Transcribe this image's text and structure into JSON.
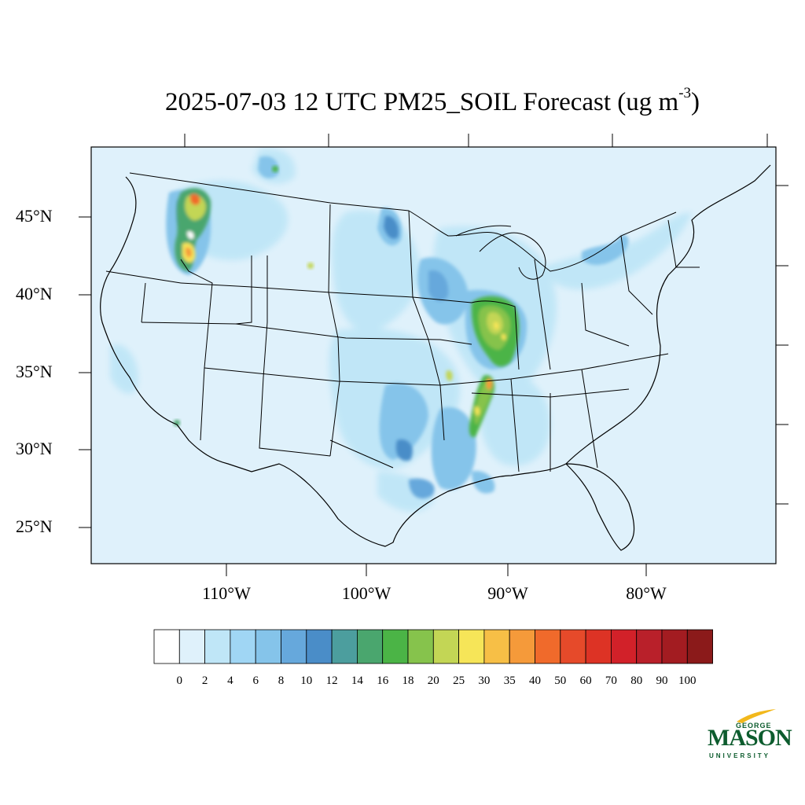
{
  "title_main": "2025-07-03 12 UTC PM25_SOIL Forecast (ug m",
  "title_sup": "-3",
  "title_close": ")",
  "latitude_labels": [
    "45°N",
    "40°N",
    "35°N",
    "30°N",
    "25°N"
  ],
  "longitude_labels": [
    "110°W",
    "100°W",
    "90°W",
    "80°W"
  ],
  "colorbar": {
    "levels": [
      "0",
      "2",
      "4",
      "6",
      "8",
      "10",
      "12",
      "14",
      "16",
      "18",
      "20",
      "25",
      "30",
      "35",
      "40",
      "50",
      "60",
      "70",
      "80",
      "90",
      "100"
    ],
    "colors": [
      "#ffffff",
      "#dff1fb",
      "#bfe6f7",
      "#a0d6f4",
      "#85c4ea",
      "#66a8dc",
      "#4a8dc8",
      "#4c9e9e",
      "#4aa66e",
      "#4bb446",
      "#86c34c",
      "#c3d655",
      "#f6e558",
      "#f7bf46",
      "#f59a3a",
      "#f06a2b",
      "#e64a2a",
      "#dd3325",
      "#d22129",
      "#b9202a",
      "#a31c21",
      "#8b1a1a"
    ]
  },
  "logo": {
    "george": "GEORGE",
    "mason": "MASON",
    "university": "UNIVERSITY"
  },
  "map": {
    "background_color": "#dff1fb",
    "outline_color": "#000000"
  }
}
